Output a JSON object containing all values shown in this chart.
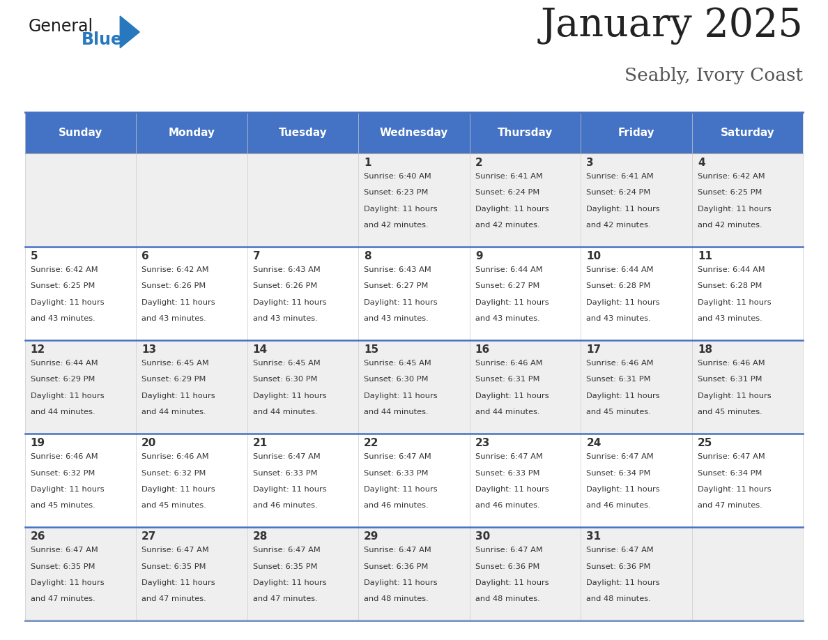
{
  "title": "January 2025",
  "subtitle": "Seably, Ivory Coast",
  "header_color": "#4472C4",
  "header_text_color": "#FFFFFF",
  "cell_bg_light": "#EFEFEF",
  "cell_bg_white": "#FFFFFF",
  "border_color": "#4472C4",
  "row_line_color": "#4472C4",
  "day_names": [
    "Sunday",
    "Monday",
    "Tuesday",
    "Wednesday",
    "Thursday",
    "Friday",
    "Saturday"
  ],
  "title_color": "#222222",
  "subtitle_color": "#555555",
  "text_color": "#333333",
  "logo_color1": "#1a1a1a",
  "logo_color2": "#2878BE",
  "calendar": [
    [
      "",
      "",
      "",
      "1",
      "2",
      "3",
      "4"
    ],
    [
      "5",
      "6",
      "7",
      "8",
      "9",
      "10",
      "11"
    ],
    [
      "12",
      "13",
      "14",
      "15",
      "16",
      "17",
      "18"
    ],
    [
      "19",
      "20",
      "21",
      "22",
      "23",
      "24",
      "25"
    ],
    [
      "26",
      "27",
      "28",
      "29",
      "30",
      "31",
      ""
    ]
  ],
  "cell_data": {
    "1": {
      "sunrise": "6:40 AM",
      "sunset": "6:23 PM",
      "daylight_h": "11 hours",
      "daylight_m": "and 42 minutes."
    },
    "2": {
      "sunrise": "6:41 AM",
      "sunset": "6:24 PM",
      "daylight_h": "11 hours",
      "daylight_m": "and 42 minutes."
    },
    "3": {
      "sunrise": "6:41 AM",
      "sunset": "6:24 PM",
      "daylight_h": "11 hours",
      "daylight_m": "and 42 minutes."
    },
    "4": {
      "sunrise": "6:42 AM",
      "sunset": "6:25 PM",
      "daylight_h": "11 hours",
      "daylight_m": "and 42 minutes."
    },
    "5": {
      "sunrise": "6:42 AM",
      "sunset": "6:25 PM",
      "daylight_h": "11 hours",
      "daylight_m": "and 43 minutes."
    },
    "6": {
      "sunrise": "6:42 AM",
      "sunset": "6:26 PM",
      "daylight_h": "11 hours",
      "daylight_m": "and 43 minutes."
    },
    "7": {
      "sunrise": "6:43 AM",
      "sunset": "6:26 PM",
      "daylight_h": "11 hours",
      "daylight_m": "and 43 minutes."
    },
    "8": {
      "sunrise": "6:43 AM",
      "sunset": "6:27 PM",
      "daylight_h": "11 hours",
      "daylight_m": "and 43 minutes."
    },
    "9": {
      "sunrise": "6:44 AM",
      "sunset": "6:27 PM",
      "daylight_h": "11 hours",
      "daylight_m": "and 43 minutes."
    },
    "10": {
      "sunrise": "6:44 AM",
      "sunset": "6:28 PM",
      "daylight_h": "11 hours",
      "daylight_m": "and 43 minutes."
    },
    "11": {
      "sunrise": "6:44 AM",
      "sunset": "6:28 PM",
      "daylight_h": "11 hours",
      "daylight_m": "and 43 minutes."
    },
    "12": {
      "sunrise": "6:44 AM",
      "sunset": "6:29 PM",
      "daylight_h": "11 hours",
      "daylight_m": "and 44 minutes."
    },
    "13": {
      "sunrise": "6:45 AM",
      "sunset": "6:29 PM",
      "daylight_h": "11 hours",
      "daylight_m": "and 44 minutes."
    },
    "14": {
      "sunrise": "6:45 AM",
      "sunset": "6:30 PM",
      "daylight_h": "11 hours",
      "daylight_m": "and 44 minutes."
    },
    "15": {
      "sunrise": "6:45 AM",
      "sunset": "6:30 PM",
      "daylight_h": "11 hours",
      "daylight_m": "and 44 minutes."
    },
    "16": {
      "sunrise": "6:46 AM",
      "sunset": "6:31 PM",
      "daylight_h": "11 hours",
      "daylight_m": "and 44 minutes."
    },
    "17": {
      "sunrise": "6:46 AM",
      "sunset": "6:31 PM",
      "daylight_h": "11 hours",
      "daylight_m": "and 45 minutes."
    },
    "18": {
      "sunrise": "6:46 AM",
      "sunset": "6:31 PM",
      "daylight_h": "11 hours",
      "daylight_m": "and 45 minutes."
    },
    "19": {
      "sunrise": "6:46 AM",
      "sunset": "6:32 PM",
      "daylight_h": "11 hours",
      "daylight_m": "and 45 minutes."
    },
    "20": {
      "sunrise": "6:46 AM",
      "sunset": "6:32 PM",
      "daylight_h": "11 hours",
      "daylight_m": "and 45 minutes."
    },
    "21": {
      "sunrise": "6:47 AM",
      "sunset": "6:33 PM",
      "daylight_h": "11 hours",
      "daylight_m": "and 46 minutes."
    },
    "22": {
      "sunrise": "6:47 AM",
      "sunset": "6:33 PM",
      "daylight_h": "11 hours",
      "daylight_m": "and 46 minutes."
    },
    "23": {
      "sunrise": "6:47 AM",
      "sunset": "6:33 PM",
      "daylight_h": "11 hours",
      "daylight_m": "and 46 minutes."
    },
    "24": {
      "sunrise": "6:47 AM",
      "sunset": "6:34 PM",
      "daylight_h": "11 hours",
      "daylight_m": "and 46 minutes."
    },
    "25": {
      "sunrise": "6:47 AM",
      "sunset": "6:34 PM",
      "daylight_h": "11 hours",
      "daylight_m": "and 47 minutes."
    },
    "26": {
      "sunrise": "6:47 AM",
      "sunset": "6:35 PM",
      "daylight_h": "11 hours",
      "daylight_m": "and 47 minutes."
    },
    "27": {
      "sunrise": "6:47 AM",
      "sunset": "6:35 PM",
      "daylight_h": "11 hours",
      "daylight_m": "and 47 minutes."
    },
    "28": {
      "sunrise": "6:47 AM",
      "sunset": "6:35 PM",
      "daylight_h": "11 hours",
      "daylight_m": "and 47 minutes."
    },
    "29": {
      "sunrise": "6:47 AM",
      "sunset": "6:36 PM",
      "daylight_h": "11 hours",
      "daylight_m": "and 48 minutes."
    },
    "30": {
      "sunrise": "6:47 AM",
      "sunset": "6:36 PM",
      "daylight_h": "11 hours",
      "daylight_m": "and 48 minutes."
    },
    "31": {
      "sunrise": "6:47 AM",
      "sunset": "6:36 PM",
      "daylight_h": "11 hours",
      "daylight_m": "and 48 minutes."
    }
  }
}
